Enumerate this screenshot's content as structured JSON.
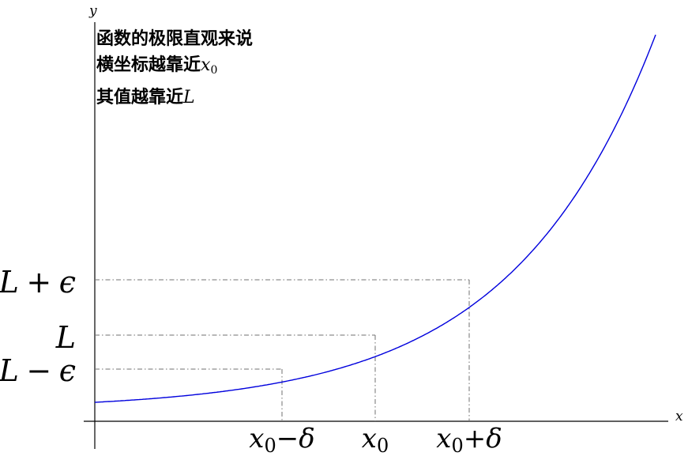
{
  "axes": {
    "x_label": "x",
    "y_label": "y"
  },
  "annotation": {
    "line1": "函数的极限直观来说",
    "line2_text": "横坐标越靠近",
    "line2_var": "x",
    "line2_sub": "0",
    "line3_text": "其值越靠近",
    "line3_var": "L"
  },
  "y_ticks": {
    "upper_var": "L",
    "upper_op": "+",
    "upper_eps": "ϵ",
    "mid_var": "L",
    "lower_var": "L",
    "lower_op": "−",
    "lower_eps": "ϵ"
  },
  "x_ticks": {
    "left_var": "x",
    "left_sub": "0",
    "left_op": "−",
    "left_delta": "δ",
    "mid_var": "x",
    "mid_sub": "0",
    "right_var": "x",
    "right_sub": "0",
    "right_op": "+",
    "right_delta": "δ"
  },
  "colors": {
    "curve": "#0000dd",
    "guide": "#707070",
    "axis": "#000000"
  }
}
